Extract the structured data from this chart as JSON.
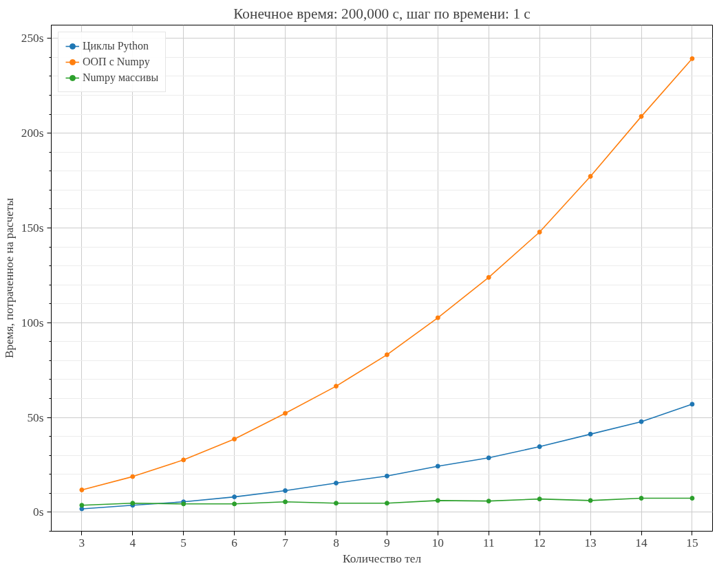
{
  "chart_data": {
    "type": "line",
    "title": "Конечное время: 200,000 с, шаг по времени: 1 с",
    "xlabel": "Количество тел",
    "ylabel": "Время, потраченное на расчеты",
    "x": [
      3,
      4,
      5,
      6,
      7,
      8,
      9,
      10,
      11,
      12,
      13,
      14,
      15
    ],
    "series": [
      {
        "name": "Циклы Python",
        "color": "#1f77b4",
        "values": [
          1.8,
          3.7,
          5.5,
          8.1,
          11.4,
          15.4,
          19.1,
          24.3,
          28.7,
          34.6,
          41.2,
          47.8,
          57
        ]
      },
      {
        "name": "ООП с Numpy",
        "color": "#ff7f0e",
        "values": [
          11.8,
          18.8,
          27.6,
          38.6,
          52.2,
          66.5,
          83.1,
          102.6,
          123.9,
          147.8,
          177.2,
          208.8,
          239.3
        ]
      },
      {
        "name": "Numpy массивы",
        "color": "#2ca02c",
        "values": [
          3.7,
          4.8,
          4.4,
          4.4,
          5.5,
          4.8,
          4.8,
          6.2,
          5.9,
          7.0,
          6.2,
          7.4,
          7.4
        ]
      }
    ],
    "xlim": [
      2.4,
      15.4
    ],
    "ylim": [
      -10,
      257
    ],
    "xticks": [
      3,
      4,
      5,
      6,
      7,
      8,
      9,
      10,
      11,
      12,
      13,
      14,
      15
    ],
    "yticks": [
      {
        "value": 0,
        "label": "0s"
      },
      {
        "value": 50,
        "label": "50s"
      },
      {
        "value": 100,
        "label": "100s"
      },
      {
        "value": 150,
        "label": "150s"
      },
      {
        "value": 200,
        "label": "200s"
      },
      {
        "value": 250,
        "label": "250s"
      }
    ],
    "grid": true,
    "legend": "top left",
    "marker": "circle",
    "line_style": "solid"
  }
}
